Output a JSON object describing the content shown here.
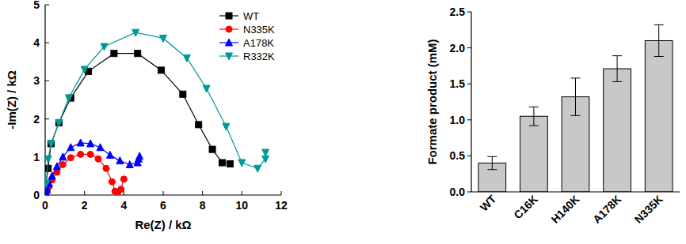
{
  "chart_data": [
    {
      "type": "line",
      "xlabel": "Re(Z) / kΩ",
      "ylabel": "-Im(Z) / kΩ",
      "xlim": [
        0,
        12
      ],
      "ylim": [
        0,
        5
      ],
      "xticks": [
        0,
        2,
        4,
        6,
        8,
        10,
        12
      ],
      "yticks": [
        0,
        1,
        2,
        3,
        4,
        5
      ],
      "legend": "top-right",
      "grid": false,
      "series": [
        {
          "name": "WT",
          "color": "#000000",
          "marker": "square",
          "line_style": "solid",
          "x": [
            0.05,
            0.15,
            0.3,
            0.7,
            1.3,
            2.2,
            3.5,
            4.7,
            5.9,
            7.0,
            7.8,
            8.5,
            9.0,
            9.4
          ],
          "values": [
            0.3,
            0.7,
            1.35,
            1.9,
            2.55,
            3.25,
            3.72,
            3.72,
            3.28,
            2.65,
            1.85,
            1.2,
            0.85,
            0.82
          ]
        },
        {
          "name": "N335K",
          "color": "#ff0000",
          "marker": "circle",
          "line_style": "solid",
          "x": [
            0.05,
            0.1,
            0.2,
            0.35,
            0.6,
            0.9,
            1.3,
            1.8,
            2.3,
            2.7,
            3.1,
            3.4,
            3.55,
            3.7,
            3.85,
            4.0
          ],
          "values": [
            0.03,
            0.1,
            0.22,
            0.4,
            0.6,
            0.8,
            0.98,
            1.07,
            1.07,
            0.95,
            0.7,
            0.35,
            0.1,
            0.08,
            0.15,
            0.42
          ]
        },
        {
          "name": "A178K",
          "color": "#0000ff",
          "marker": "triangle",
          "line_style": "solid",
          "x": [
            0.05,
            0.1,
            0.2,
            0.35,
            0.6,
            0.9,
            1.3,
            1.8,
            2.3,
            2.8,
            3.3,
            3.8,
            4.3,
            4.7,
            4.75,
            4.8
          ],
          "values": [
            0.05,
            0.15,
            0.3,
            0.5,
            0.75,
            1.0,
            1.25,
            1.37,
            1.35,
            1.25,
            1.05,
            0.9,
            0.8,
            0.85,
            0.95,
            1.02
          ]
        },
        {
          "name": "R332K",
          "color": "#009999",
          "marker": "triangle-down",
          "line_style": "solid",
          "x": [
            0.05,
            0.15,
            0.3,
            0.7,
            1.2,
            2.0,
            3.0,
            4.6,
            6.0,
            7.2,
            8.2,
            9.2,
            10.0,
            10.8,
            11.2,
            11.2
          ],
          "values": [
            0.3,
            0.95,
            1.35,
            1.9,
            2.55,
            3.3,
            3.9,
            4.27,
            4.12,
            3.6,
            2.8,
            1.8,
            0.85,
            0.7,
            0.95,
            1.12
          ]
        }
      ]
    },
    {
      "type": "bar",
      "ylabel": "Formate product  (mM)",
      "categories": [
        "WT",
        "C16K",
        "H140K",
        "A178K",
        "N335K"
      ],
      "values": [
        0.4,
        1.05,
        1.32,
        1.71,
        2.1
      ],
      "errors": [
        0.09,
        0.13,
        0.26,
        0.18,
        0.22
      ],
      "color": "#c8c8c8",
      "ylim": [
        0,
        2.5
      ],
      "yticks": [
        {
          "value": 0,
          "label": "0.0"
        },
        {
          "value": 0.5,
          "label": "0.5"
        },
        {
          "value": 1,
          "label": "1.0"
        },
        {
          "value": 1.5,
          "label": "1.5"
        },
        {
          "value": 2,
          "label": "2.0"
        },
        {
          "value": 2.5,
          "label": "2.5"
        }
      ],
      "grid": false
    }
  ]
}
